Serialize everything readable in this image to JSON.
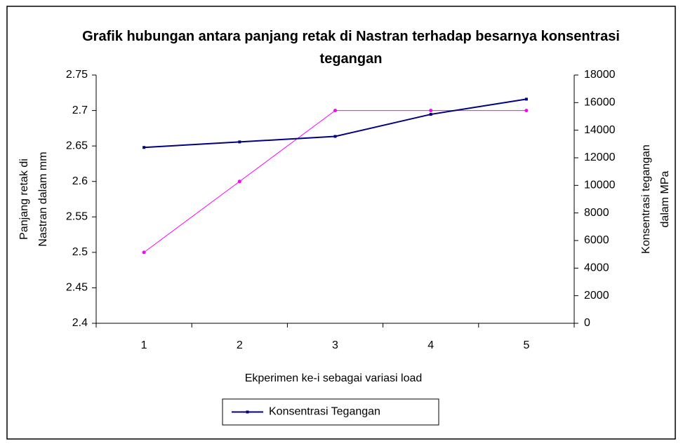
{
  "chart_data": {
    "type": "line",
    "title": "Grafik hubungan antara panjang retak di Nastran terhadap besarnya konsentrasi tegangan",
    "xlabel": "Ekperimen ke-i sebagai variasi load",
    "ylabel": "Panjang retak di Nastran dalam mm",
    "y2label": "Konsentrasi tegangan dalam MPa",
    "categories": [
      "1",
      "2",
      "3",
      "4",
      "5"
    ],
    "series": [
      {
        "color": "#ff00ff",
        "values": [
          2.5,
          2.6,
          2.7,
          2.7,
          2.7
        ]
      },
      {
        "name": "Konsentrasi Tegangan",
        "color": "#000080",
        "axis": "y2",
        "values": [
          12750,
          13150,
          13550,
          15150,
          16250
        ]
      }
    ],
    "ylim": [
      2.4,
      2.75
    ],
    "yticks": [
      2.4,
      2.45,
      2.5,
      2.55,
      2.6,
      2.65,
      2.7,
      2.75
    ],
    "y2lim": [
      0,
      18000
    ],
    "y2ticks": [
      0,
      2000,
      4000,
      6000,
      8000,
      10000,
      12000,
      14000,
      16000,
      18000
    ],
    "legend": "bottom"
  }
}
